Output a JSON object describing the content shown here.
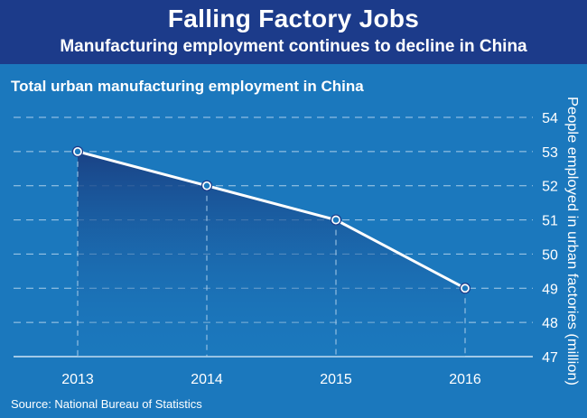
{
  "header": {
    "title": "Falling Factory Jobs",
    "subtitle": "Manufacturing employment continues to decline in China"
  },
  "source": "Source: National Bureau of Statistics",
  "colors": {
    "background": "#1b78bd",
    "header": "#1c3b8a",
    "line": "#ffffff",
    "area_top": "#1a3f82",
    "grid": "#a9cdea"
  },
  "chart_data": {
    "type": "area",
    "title": "Total urban manufacturing employment in China",
    "xlabel": "",
    "ylabel": "People employed in urban factories (million)",
    "categories": [
      "2013",
      "2014",
      "2015",
      "2016"
    ],
    "series": [
      {
        "values": [
          53,
          52,
          51,
          49
        ]
      }
    ],
    "ylim": [
      47,
      54
    ],
    "yticks": [
      47,
      48,
      49,
      50,
      51,
      52,
      53,
      54
    ],
    "grid": true,
    "y_axis_side": "right"
  }
}
